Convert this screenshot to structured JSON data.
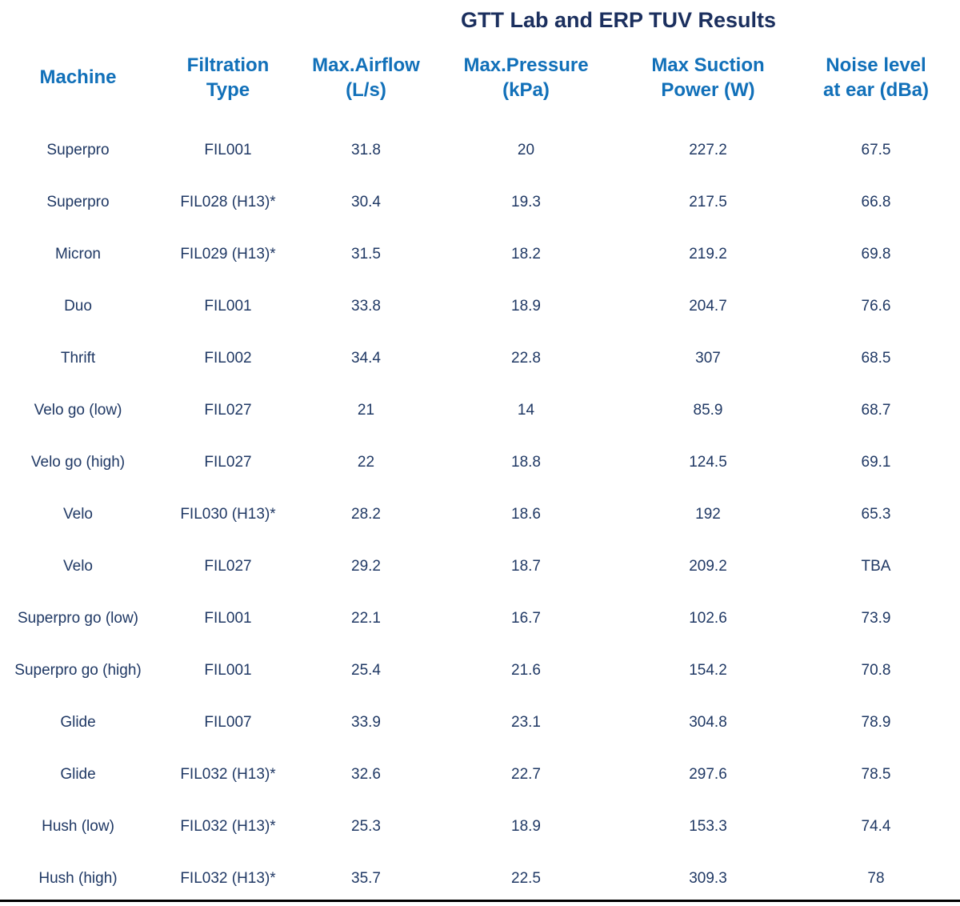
{
  "colors": {
    "title_text": "#1b2f5e",
    "header_text": "#1170b9",
    "data_text": "#1f3864",
    "bottom_rule": "#000000",
    "background": "#ffffff"
  },
  "chart_data": {
    "type": "table",
    "title": "GTT Lab and ERP TUV Results",
    "columns": [
      {
        "label": "Machine",
        "lines": [
          "Machine"
        ]
      },
      {
        "label": "Filtration Type",
        "lines": [
          "Filtration",
          "Type"
        ]
      },
      {
        "label": "Max.Airflow (L/s)",
        "lines": [
          "Max.Airflow",
          "(L/s)"
        ]
      },
      {
        "label": "Max.Pressure (kPa)",
        "lines": [
          "Max.Pressure",
          "(kPa)"
        ]
      },
      {
        "label": "Max Suction Power (W)",
        "lines": [
          "Max Suction",
          "Power (W)"
        ]
      },
      {
        "label": "Noise level at ear (dBa)",
        "lines": [
          "Noise level",
          "at ear (dBa)"
        ]
      }
    ],
    "rows": [
      [
        "Superpro",
        "FIL001",
        "31.8",
        "20",
        "227.2",
        "67.5"
      ],
      [
        "Superpro",
        "FIL028 (H13)*",
        "30.4",
        "19.3",
        "217.5",
        "66.8"
      ],
      [
        "Micron",
        "FIL029 (H13)*",
        "31.5",
        "18.2",
        "219.2",
        "69.8"
      ],
      [
        "Duo",
        "FIL001",
        "33.8",
        "18.9",
        "204.7",
        "76.6"
      ],
      [
        "Thrift",
        "FIL002",
        "34.4",
        "22.8",
        "307",
        "68.5"
      ],
      [
        "Velo go (low)",
        "FIL027",
        "21",
        "14",
        "85.9",
        "68.7"
      ],
      [
        "Velo go (high)",
        "FIL027",
        "22",
        "18.8",
        "124.5",
        "69.1"
      ],
      [
        "Velo",
        "FIL030 (H13)*",
        "28.2",
        "18.6",
        "192",
        "65.3"
      ],
      [
        "Velo",
        "FIL027",
        "29.2",
        "18.7",
        "209.2",
        "TBA"
      ],
      [
        "Superpro go (low)",
        "FIL001",
        "22.1",
        "16.7",
        "102.6",
        "73.9"
      ],
      [
        "Superpro go (high)",
        "FIL001",
        "25.4",
        "21.6",
        "154.2",
        "70.8"
      ],
      [
        "Glide",
        "FIL007",
        "33.9",
        "23.1",
        "304.8",
        "78.9"
      ],
      [
        "Glide",
        "FIL032 (H13)*",
        "32.6",
        "22.7",
        "297.6",
        "78.5"
      ],
      [
        "Hush (low)",
        "FIL032 (H13)*",
        "25.3",
        "18.9",
        "153.3",
        "74.4"
      ],
      [
        "Hush (high)",
        "FIL032 (H13)*",
        "35.7",
        "22.5",
        "309.3",
        "78"
      ]
    ]
  }
}
